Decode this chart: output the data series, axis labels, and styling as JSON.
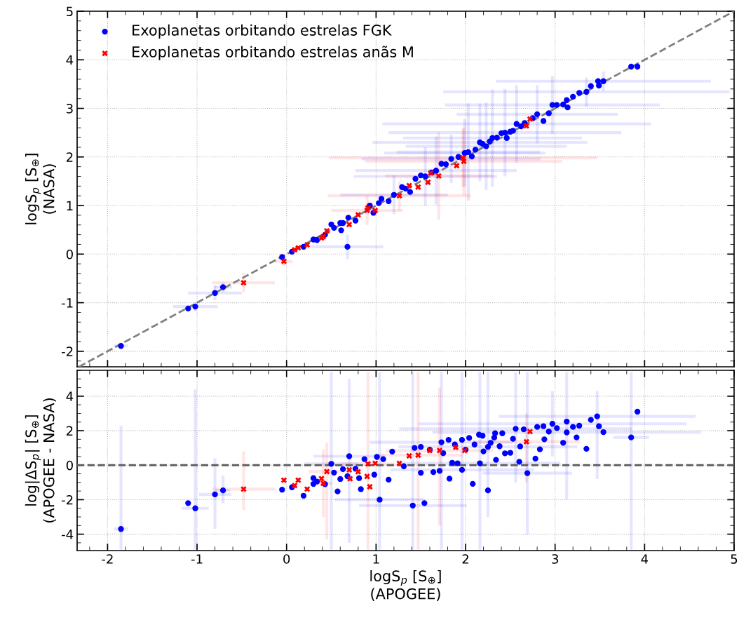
{
  "chart_data": [
    {
      "type": "scatter",
      "ylabel": "logS$_{p}$ [S$_{⊕}$]\n(NASA)",
      "xlim": [
        -2.34,
        5
      ],
      "ylim": [
        -2.32,
        5
      ],
      "xticks": [
        -2,
        -1,
        0,
        1,
        2,
        3,
        4,
        5
      ],
      "yticks": [
        -2,
        -1,
        0,
        1,
        2,
        3,
        4,
        5
      ],
      "tick_labels": "y",
      "grid": true,
      "legend": "top left",
      "series": [
        {
          "name": "Exoplanetas orbitando estrelas FGK",
          "color": "#0000ff",
          "marker": "circle",
          "x": [
            -1.85,
            -1.02,
            -0.8,
            -0.71,
            0.68,
            1.2,
            1.55,
            1.84,
            1.99,
            2.16,
            2.3,
            2.44,
            2.57,
            2.8,
            2.97,
            3.35,
            3.54,
            2.03,
            1.67,
            2.23,
            -1.1,
            -0.05,
            0.06,
            0.19,
            0.3,
            0.34,
            0.43,
            0.5,
            0.53,
            0.6,
            0.61,
            0.63,
            0.69,
            0.77,
            0.93,
            0.97,
            1.03,
            1.06,
            1.14,
            1.29,
            1.38,
            1.44,
            1.5,
            1.73,
            2.07,
            2.4,
            2.46,
            2.53,
            2.62,
            2.87,
            2.93,
            3.02,
            3.09,
            3.14,
            3.13,
            3.2,
            3.27,
            3.4,
            3.48,
            3.49,
            3.85,
            3.92,
            1.33,
            1.62,
            1.78,
            1.92,
            2.11,
            2.19,
            2.27,
            2.35,
            2.5,
            2.66,
            2.75
          ],
          "values": [
            -1.89,
            -1.08,
            -0.8,
            -0.68,
            0.15,
            1.22,
            1.6,
            1.96,
            2.08,
            2.3,
            2.39,
            2.5,
            2.68,
            2.88,
            3.07,
            3.34,
            3.56,
            2.1,
            1.72,
            2.22,
            -1.12,
            -0.06,
            0.05,
            0.15,
            0.3,
            0.29,
            0.4,
            0.61,
            0.54,
            0.64,
            0.49,
            0.64,
            0.75,
            0.69,
            1.0,
            0.85,
            1.05,
            1.14,
            1.09,
            1.38,
            1.28,
            1.55,
            1.62,
            1.86,
            2.01,
            2.49,
            2.39,
            2.54,
            2.63,
            2.74,
            2.9,
            3.07,
            3.08,
            3.02,
            3.17,
            3.24,
            3.32,
            3.46,
            3.56,
            3.47,
            3.86,
            3.86,
            1.35,
            1.68,
            1.85,
            2.0,
            2.15,
            2.27,
            2.32,
            2.4,
            2.52,
            2.7,
            2.8
          ],
          "xerrors": [
            0.08,
            0.25,
            0.3,
            0.1,
            0.4,
            0.6,
            0.8,
            1.0,
            0.9,
            1.2,
            1.0,
            1.3,
            1.5,
            0.9,
            1.2,
            1.6,
            1.2,
            0.8,
            0.9,
            0.9,
            null,
            null,
            null,
            null,
            null,
            null,
            null,
            null,
            null,
            null,
            null,
            null,
            null,
            null,
            null,
            null,
            null,
            null,
            null,
            null,
            null,
            null,
            null,
            null,
            null,
            null,
            null,
            null,
            null,
            null,
            null,
            null,
            null,
            null,
            null,
            null,
            null,
            null,
            null,
            null,
            null,
            null,
            null,
            null,
            null,
            null,
            null,
            null,
            null,
            null,
            null,
            null,
            null
          ],
          "errors": [
            0.05,
            0.1,
            0.15,
            0.1,
            0.25,
            0.4,
            0.6,
            0.5,
            0.7,
            0.8,
            1.0,
            0.9,
            0.8,
            0.6,
            0.6,
            0.3,
            0.2,
            1.0,
            0.7,
            0.9,
            null,
            null,
            null,
            null,
            null,
            null,
            null,
            null,
            null,
            null,
            null,
            null,
            null,
            null,
            null,
            null,
            null,
            null,
            null,
            null,
            null,
            null,
            null,
            null,
            null,
            null,
            null,
            null,
            null,
            null,
            null,
            null,
            null,
            null,
            null,
            null,
            null,
            null,
            null,
            null,
            null,
            null,
            null,
            null,
            null,
            null,
            null,
            null,
            null,
            null,
            null,
            null,
            null
          ]
        },
        {
          "name": "Exoplanetas orbitando estrelas anãs M",
          "color": "#ff0000",
          "marker": "cross",
          "x": [
            -0.48,
            -0.03,
            0.9,
            1.26,
            1.97,
            1.98,
            1.7,
            0.09,
            0.13,
            0.23,
            0.39,
            0.41,
            0.45,
            0.7,
            0.8,
            0.91,
            0.99,
            1.37,
            1.47,
            1.58,
            1.61,
            1.9,
            2.68,
            2.72
          ],
          "values": [
            -0.59,
            -0.15,
            0.9,
            1.2,
            1.98,
            1.91,
            1.61,
            0.09,
            0.13,
            0.19,
            0.33,
            0.36,
            0.48,
            0.61,
            0.81,
            0.95,
            0.9,
            1.41,
            1.38,
            1.48,
            1.67,
            1.82,
            2.64,
            2.78
          ],
          "xerrors": [
            0.35,
            0.1,
            0.4,
            0.8,
            1.5,
            1.1,
            0.6,
            null,
            null,
            null,
            null,
            null,
            null,
            null,
            null,
            null,
            null,
            null,
            null,
            null,
            null,
            null,
            null,
            null
          ],
          "errors": [
            0.2,
            0.1,
            0.3,
            0.3,
            0.6,
            0.7,
            0.9,
            null,
            null,
            null,
            null,
            null,
            null,
            null,
            null,
            null,
            null,
            null,
            null,
            null,
            null,
            null,
            null,
            null
          ]
        },
        {
          "type": "line",
          "color": "#808080",
          "line_style": "dashed",
          "x": [
            -2.32,
            5
          ],
          "values": [
            -2.32,
            5
          ]
        }
      ]
    },
    {
      "type": "scatter",
      "xlabel": "logS$_{p}$ [S$_{⊕}$]\n(APOGEE)",
      "ylabel": "log|ΔS$_{p}$| [S$_{⊕}$]\n(APOGEE - NASA)",
      "xlim": [
        -2.34,
        5
      ],
      "ylim": [
        -4.95,
        5.5
      ],
      "xticks": [
        -2,
        -1,
        0,
        1,
        2,
        3,
        4,
        5
      ],
      "yticks": [
        -4,
        -2,
        0,
        2,
        4
      ],
      "grid": true,
      "ref_lines": [
        {
          "axis": "y",
          "value": 0,
          "color": "#606060",
          "line_style": "dashed"
        }
      ],
      "series": [
        {
          "color": "#0000ff",
          "marker": "circle",
          "x": [
            -1.85,
            -1.02,
            -0.8,
            -0.71,
            0.5,
            0.7,
            1.04,
            1.41,
            1.96,
            2.16,
            2.25,
            2.56,
            2.97,
            3.47,
            3.85,
            2.69,
            3.13,
            1.73,
            -1.1,
            -0.05,
            0.06,
            0.19,
            0.3,
            0.3,
            0.34,
            0.43,
            0.53,
            0.57,
            0.6,
            0.63,
            0.68,
            0.77,
            0.81,
            0.83,
            0.87,
            0.98,
            1.01,
            1.08,
            1.14,
            1.18,
            1.31,
            1.43,
            1.5,
            1.5,
            1.54,
            1.64,
            1.71,
            1.81,
            1.82,
            1.85,
            1.91,
            1.96,
            2.04,
            2.08,
            2.15,
            2.19,
            2.25,
            2.32,
            2.33,
            2.34,
            2.41,
            2.44,
            2.5,
            2.53,
            2.6,
            2.61,
            2.65,
            2.78,
            2.8,
            2.83,
            2.87,
            2.88,
            2.93,
            3.02,
            3.09,
            3.13,
            3.2,
            3.24,
            3.27,
            3.35,
            3.4,
            3.49,
            3.54,
            3.92,
            1.6,
            1.75,
            1.88,
            2.0,
            2.1,
            2.2,
            2.28,
            2.38
          ],
          "values": [
            -3.7,
            -2.5,
            -1.69,
            -1.46,
            0.08,
            0.52,
            -2.0,
            -2.34,
            -0.27,
            0.11,
            1.06,
            2.11,
            2.4,
            2.83,
            1.61,
            -0.46,
            1.9,
            1.33,
            -2.2,
            -1.42,
            -1.28,
            -1.77,
            -1.09,
            -0.75,
            -0.95,
            -1.1,
            -0.43,
            -1.52,
            -0.8,
            -0.23,
            -0.64,
            -0.21,
            -0.75,
            -1.39,
            0.35,
            -0.55,
            0.48,
            0.35,
            -0.84,
            0.79,
            -0.06,
            1.0,
            1.06,
            -0.44,
            -2.2,
            -0.4,
            -0.33,
            1.47,
            -0.78,
            0.14,
            0.11,
            1.47,
            1.58,
            -1.08,
            1.77,
            1.71,
            -1.46,
            1.6,
            1.85,
            0.31,
            1.85,
            0.69,
            0.72,
            1.53,
            0.2,
            1.09,
            2.08,
            0.38,
            2.22,
            0.92,
            2.26,
            1.5,
            1.95,
            2.15,
            1.3,
            2.53,
            2.22,
            1.61,
            2.29,
            0.95,
            2.63,
            2.26,
            1.92,
            3.1,
            0.9,
            0.7,
            1.2,
            0.9,
            1.2,
            0.8,
            1.3,
            1.1
          ],
          "xerrors": [
            0.08,
            0.15,
            0.18,
            0.08,
            0.3,
            0.4,
            0.5,
            0.6,
            0.8,
            0.9,
            1.0,
            1.3,
            1.5,
            1.1,
            0.2,
            0.5,
            1.5,
            0.8,
            null,
            null,
            null,
            null,
            null,
            null,
            null,
            null,
            null,
            null,
            null,
            null,
            null,
            null,
            null,
            null,
            null,
            null,
            null,
            null,
            null,
            null,
            null,
            null,
            null,
            null,
            null,
            null,
            null,
            null,
            null,
            null,
            null,
            null,
            null,
            null,
            null,
            null,
            null,
            null,
            null,
            null,
            null,
            null,
            null,
            null,
            null,
            null,
            null,
            null,
            null,
            null,
            null,
            null,
            null,
            null,
            null,
            null,
            null,
            null,
            null,
            null,
            null,
            null,
            null,
            null,
            null,
            null,
            null,
            null,
            null,
            null,
            null,
            null
          ],
          "errors": [
            [
              -4.9,
              2.3
            ],
            [
              -4.9,
              4.4
            ],
            [
              -3.7,
              0.4
            ],
            [
              -2.2,
              -0.6
            ],
            [
              -4.9,
              5.4
            ],
            [
              -4.5,
              5.0
            ],
            [
              -4.9,
              5.4
            ],
            [
              -4.9,
              5.4
            ],
            [
              -4.9,
              5.4
            ],
            [
              -4.9,
              5.4
            ],
            [
              -3.0,
              5.4
            ],
            [
              -1.0,
              5.4
            ],
            [
              0.5,
              4.3
            ],
            [
              -0.8,
              4.3
            ],
            [
              -4.9,
              5.4
            ],
            [
              -4.0,
              5.4
            ],
            [
              -2.0,
              5.4
            ],
            [
              -4.9,
              5.4
            ],
            null,
            null,
            null,
            null,
            null,
            null,
            null,
            null,
            null,
            null,
            null,
            null,
            null,
            null,
            null,
            null,
            null,
            null,
            null,
            null,
            null,
            null,
            null,
            null,
            null,
            null,
            null,
            null,
            null,
            null,
            null,
            null,
            null,
            null,
            null,
            null,
            null,
            null,
            null,
            null,
            null,
            null,
            null,
            null,
            null,
            null,
            null,
            null,
            null,
            null,
            null,
            null,
            null,
            null,
            null,
            null,
            null,
            null,
            null,
            null,
            null,
            null,
            null,
            null,
            null,
            null,
            null,
            null,
            null,
            null,
            null,
            null,
            null,
            null
          ]
        },
        {
          "color": "#ff0000",
          "marker": "cross",
          "x": [
            -0.48,
            0.41,
            0.45,
            0.91,
            1.47,
            1.71,
            2.68,
            -0.03,
            0.09,
            0.13,
            0.23,
            0.39,
            0.7,
            0.71,
            0.8,
            0.9,
            0.93,
            0.99,
            1.26,
            1.37,
            1.6,
            1.89,
            1.99,
            2.72
          ],
          "values": [
            -1.39,
            -1.05,
            -0.37,
            0.08,
            0.58,
            0.85,
            1.36,
            -0.87,
            -1.18,
            -0.87,
            -1.39,
            -0.78,
            -0.27,
            -0.79,
            -0.38,
            -0.65,
            -1.25,
            0.11,
            0.11,
            0.54,
            0.85,
            1.03,
            0.85,
            1.95
          ],
          "xerrors": [
            0.35,
            0.1,
            0.2,
            0.3,
            0.5,
            0.6,
            0.6,
            null,
            null,
            null,
            null,
            null,
            null,
            null,
            null,
            null,
            null,
            null,
            null,
            null,
            null,
            null,
            null,
            null
          ],
          "errors": [
            [
              -2.6,
              0.8
            ],
            [
              -3.0,
              0.9
            ],
            [
              -4.3,
              1.3
            ],
            [
              -4.9,
              5.4
            ],
            [
              -4.9,
              5.4
            ],
            [
              -3.5,
              4.5
            ],
            [
              -1.0,
              3.0
            ],
            null,
            null,
            null,
            null,
            null,
            null,
            null,
            null,
            null,
            null,
            null,
            null,
            null,
            null,
            null,
            null,
            null
          ]
        }
      ]
    }
  ]
}
